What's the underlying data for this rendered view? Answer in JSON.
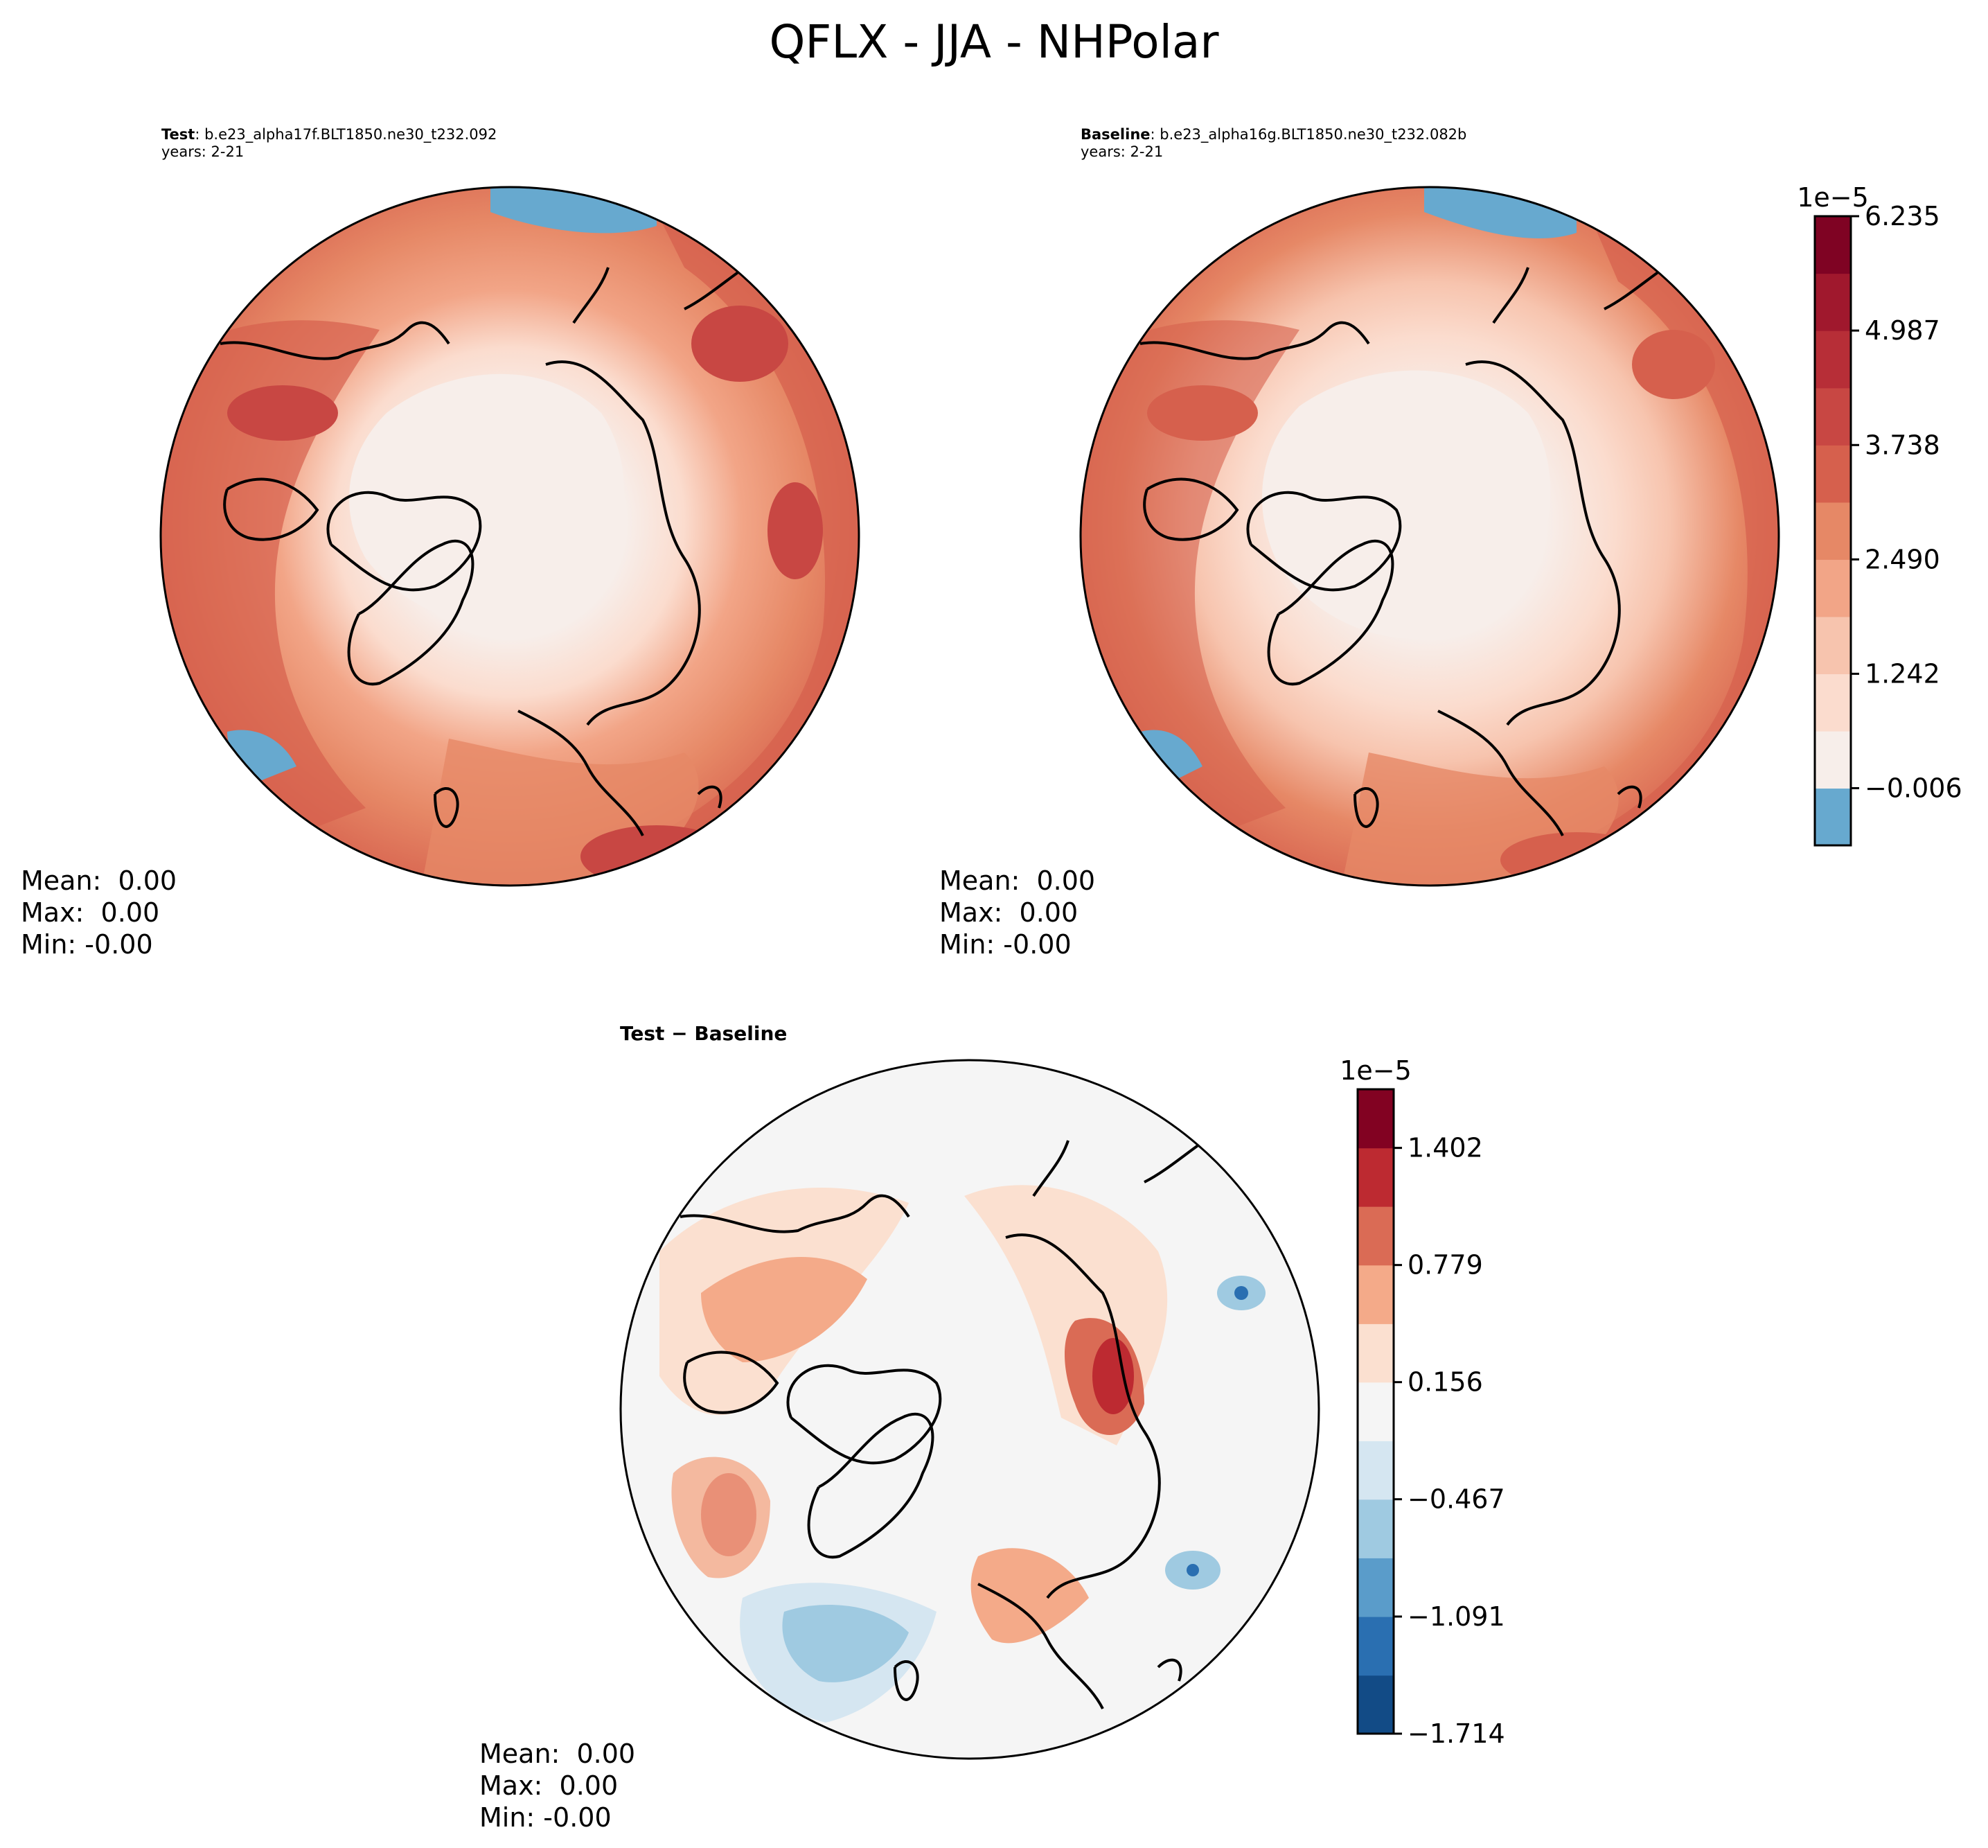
{
  "figure": {
    "title": "QFLX - JJA - NHPolar"
  },
  "panels": [
    {
      "id": "test",
      "label": "Test",
      "case": ": b.e23_alpha17f.BLT1850.ne30_t232.092",
      "years": "years: 2-21",
      "stats": {
        "mean": "Mean:  0.00",
        "max": "Max:  0.00",
        "min": "Min: -0.00"
      }
    },
    {
      "id": "baseline",
      "label": "Baseline",
      "case": ": b.e23_alpha16g.BLT1850.ne30_t232.082b",
      "years": "years: 2-21",
      "stats": {
        "mean": "Mean:  0.00",
        "max": "Max:  0.00",
        "min": "Min: -0.00"
      }
    },
    {
      "id": "diff",
      "label": "Test − Baseline",
      "stats": {
        "mean": "Mean:  0.00",
        "max": "Max:  0.00",
        "min": "Min: -0.00"
      }
    }
  ],
  "chart_data": [
    {
      "type": "heatmap",
      "name": "main-colorbar",
      "exponent_label": "1e−5",
      "levels": [
        -0.63,
        -0.006,
        0.618,
        1.242,
        1.866,
        2.49,
        3.114,
        3.738,
        4.362,
        4.987,
        5.611,
        6.235
      ],
      "colors": [
        "#67a9cf",
        "#f7eeea",
        "#fbdcce",
        "#f7c4ae",
        "#f2a587",
        "#e68866",
        "#d6604d",
        "#c84743",
        "#b72e37",
        "#a0182d",
        "#7f0323"
      ],
      "ticks": [
        -0.006,
        1.242,
        2.49,
        3.738,
        4.987,
        6.235
      ],
      "tick_labels": [
        "−0.006",
        "1.242",
        "2.490",
        "3.738",
        "4.987",
        "6.235"
      ],
      "range": [
        -0.63,
        6.235
      ]
    },
    {
      "type": "heatmap",
      "name": "diff-colorbar",
      "exponent_label": "1e−5",
      "levels": [
        -1.714,
        -1.403,
        -1.091,
        -0.779,
        -0.467,
        -0.156,
        0.156,
        0.467,
        0.779,
        1.091,
        1.402,
        1.714
      ],
      "colors": [
        "#124b86",
        "#2a6fb1",
        "#5a9cca",
        "#9fcae1",
        "#d5e6f1",
        "#f5f5f5",
        "#fbe0d0",
        "#f4aa89",
        "#da6b55",
        "#bd2a31",
        "#820222"
      ],
      "ticks": [
        -1.714,
        -1.091,
        -0.467,
        0.156,
        0.779,
        1.402
      ],
      "tick_labels": [
        "−1.714",
        "−1.091",
        "−0.467",
        "0.156",
        "0.779",
        "1.402"
      ],
      "range": [
        -1.714,
        1.714
      ]
    }
  ]
}
